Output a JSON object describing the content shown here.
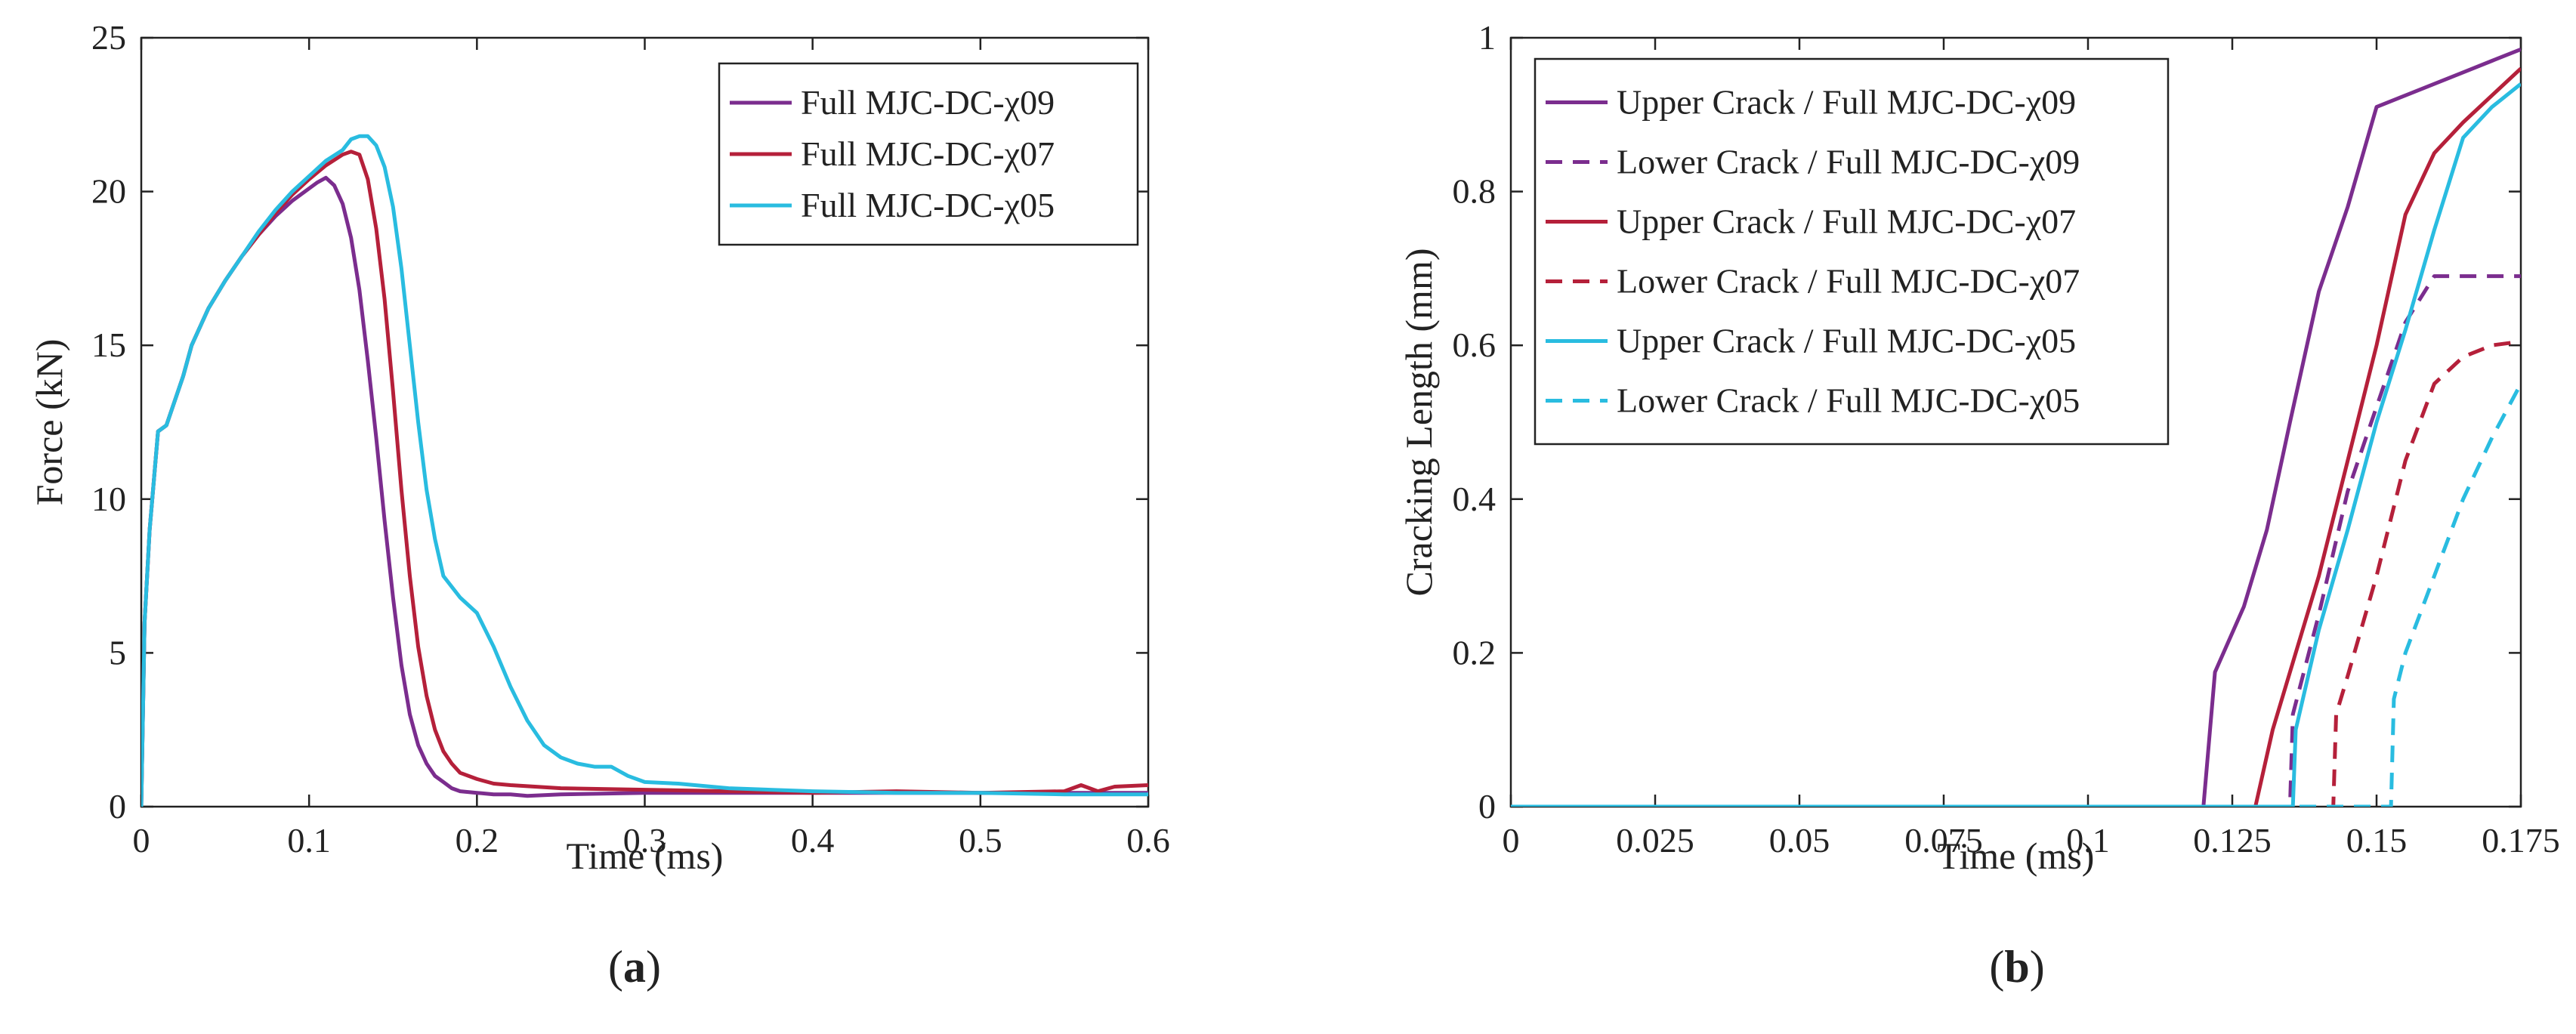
{
  "chart_data": [
    {
      "type": "line",
      "panel_label_open": "(",
      "panel_label_letter": "a",
      "panel_label_close": ")",
      "title": "",
      "xlabel": "Time (ms)",
      "ylabel": "Force (kN)",
      "xlim": [
        0,
        0.6
      ],
      "ylim": [
        0,
        25
      ],
      "xticks": [
        0,
        0.1,
        0.2,
        0.3,
        0.4,
        0.5,
        0.6
      ],
      "xtick_labels": [
        "0",
        "0.1",
        "0.2",
        "0.3",
        "0.4",
        "0.5",
        "0.6"
      ],
      "yticks": [
        0,
        5,
        10,
        15,
        20,
        25
      ],
      "ytick_labels": [
        "0",
        "5",
        "10",
        "15",
        "20",
        "25"
      ],
      "grid": false,
      "legend_position": "top-right",
      "series": [
        {
          "name": "Full MJC-DC-χ09",
          "color": "#7B2D8E",
          "dash": "solid",
          "x": [
            0,
            0.002,
            0.005,
            0.01,
            0.015,
            0.02,
            0.025,
            0.03,
            0.04,
            0.05,
            0.06,
            0.07,
            0.08,
            0.09,
            0.1,
            0.105,
            0.11,
            0.115,
            0.12,
            0.125,
            0.13,
            0.135,
            0.14,
            0.145,
            0.15,
            0.155,
            0.16,
            0.165,
            0.17,
            0.175,
            0.18,
            0.185,
            0.19,
            0.2,
            0.21,
            0.22,
            0.23,
            0.25,
            0.3,
            0.35,
            0.4,
            0.45,
            0.5,
            0.55,
            0.6
          ],
          "y": [
            0,
            6,
            9,
            12.2,
            12.4,
            13.2,
            14,
            15,
            16.2,
            17.1,
            17.9,
            18.6,
            19.2,
            19.7,
            20.1,
            20.3,
            20.45,
            20.2,
            19.6,
            18.5,
            16.8,
            14.5,
            12,
            9.3,
            6.8,
            4.6,
            3,
            2,
            1.4,
            1,
            0.8,
            0.6,
            0.5,
            0.45,
            0.4,
            0.4,
            0.35,
            0.4,
            0.45,
            0.45,
            0.45,
            0.45,
            0.45,
            0.45,
            0.45
          ]
        },
        {
          "name": "Full MJC-DC-χ07",
          "color": "#B5203A",
          "dash": "solid",
          "x": [
            0,
            0.002,
            0.005,
            0.01,
            0.015,
            0.02,
            0.025,
            0.03,
            0.04,
            0.05,
            0.06,
            0.07,
            0.08,
            0.09,
            0.1,
            0.11,
            0.12,
            0.125,
            0.13,
            0.135,
            0.14,
            0.145,
            0.15,
            0.155,
            0.16,
            0.165,
            0.17,
            0.175,
            0.18,
            0.185,
            0.19,
            0.2,
            0.21,
            0.22,
            0.25,
            0.3,
            0.35,
            0.4,
            0.45,
            0.5,
            0.55,
            0.56,
            0.57,
            0.58,
            0.6
          ],
          "y": [
            0,
            6,
            9,
            12.2,
            12.4,
            13.2,
            14,
            15,
            16.2,
            17.1,
            17.9,
            18.6,
            19.3,
            19.9,
            20.4,
            20.85,
            21.2,
            21.3,
            21.2,
            20.4,
            18.8,
            16.5,
            13.5,
            10.3,
            7.5,
            5.2,
            3.6,
            2.5,
            1.8,
            1.4,
            1.1,
            0.9,
            0.75,
            0.7,
            0.6,
            0.55,
            0.5,
            0.45,
            0.5,
            0.45,
            0.5,
            0.7,
            0.5,
            0.65,
            0.7
          ]
        },
        {
          "name": "Full MJC-DC-χ05",
          "color": "#29BCE0",
          "dash": "solid",
          "x": [
            0,
            0.002,
            0.005,
            0.01,
            0.015,
            0.02,
            0.025,
            0.03,
            0.04,
            0.05,
            0.06,
            0.07,
            0.08,
            0.09,
            0.1,
            0.11,
            0.12,
            0.125,
            0.13,
            0.135,
            0.14,
            0.145,
            0.15,
            0.155,
            0.16,
            0.165,
            0.17,
            0.175,
            0.18,
            0.19,
            0.2,
            0.21,
            0.22,
            0.23,
            0.24,
            0.25,
            0.26,
            0.27,
            0.28,
            0.29,
            0.3,
            0.32,
            0.35,
            0.4,
            0.45,
            0.5,
            0.55,
            0.6
          ],
          "y": [
            0,
            6,
            9,
            12.2,
            12.4,
            13.2,
            14,
            15,
            16.2,
            17.1,
            17.9,
            18.7,
            19.4,
            20,
            20.5,
            21,
            21.35,
            21.7,
            21.8,
            21.8,
            21.5,
            20.8,
            19.5,
            17.5,
            15,
            12.5,
            10.3,
            8.7,
            7.5,
            6.8,
            6.3,
            5.2,
            3.9,
            2.8,
            2,
            1.6,
            1.4,
            1.3,
            1.3,
            1,
            0.8,
            0.75,
            0.6,
            0.5,
            0.45,
            0.45,
            0.4,
            0.4
          ]
        }
      ]
    },
    {
      "type": "line",
      "panel_label_open": "(",
      "panel_label_letter": "b",
      "panel_label_close": ")",
      "title": "",
      "xlabel": "Time (ms)",
      "ylabel": "Cracking Length (mm)",
      "xlim": [
        0,
        0.175
      ],
      "ylim": [
        0,
        1
      ],
      "xticks": [
        0,
        0.025,
        0.05,
        0.075,
        0.1,
        0.125,
        0.15,
        0.175
      ],
      "xtick_labels": [
        "0",
        "0.025",
        "0.05",
        "0.075",
        "0.1",
        "0.125",
        "0.15",
        "0.175"
      ],
      "yticks": [
        0,
        0.2,
        0.4,
        0.6,
        0.8,
        1
      ],
      "ytick_labels": [
        "0",
        "0.2",
        "0.4",
        "0.6",
        "0.8",
        "1"
      ],
      "grid": false,
      "legend_position": "top-left",
      "series": [
        {
          "name": "Upper Crack / Full MJC-DC-χ09",
          "color": "#7B2D8E",
          "dash": "solid",
          "x": [
            0,
            0.12,
            0.122,
            0.127,
            0.131,
            0.135,
            0.14,
            0.145,
            0.15,
            0.155,
            0.16,
            0.165,
            0.17,
            0.175
          ],
          "y": [
            0,
            0,
            0.175,
            0.26,
            0.36,
            0.5,
            0.67,
            0.78,
            0.91,
            0.925,
            0.94,
            0.955,
            0.97,
            0.985
          ]
        },
        {
          "name": "Lower Crack / Full MJC-DC-χ09",
          "color": "#7B2D8E",
          "dash": "dashed",
          "x": [
            0,
            0.135,
            0.1355,
            0.14,
            0.145,
            0.15,
            0.155,
            0.16,
            0.165,
            0.17,
            0.175
          ],
          "y": [
            0,
            0,
            0.12,
            0.25,
            0.41,
            0.52,
            0.63,
            0.69,
            0.69,
            0.69,
            0.69
          ]
        },
        {
          "name": "Upper Crack / Full MJC-DC-χ07",
          "color": "#B5203A",
          "dash": "solid",
          "x": [
            0,
            0.129,
            0.132,
            0.136,
            0.14,
            0.145,
            0.15,
            0.155,
            0.16,
            0.165,
            0.17,
            0.175
          ],
          "y": [
            0,
            0,
            0.1,
            0.2,
            0.3,
            0.45,
            0.6,
            0.77,
            0.85,
            0.89,
            0.925,
            0.96
          ]
        },
        {
          "name": "Lower Crack / Full MJC-DC-χ07",
          "color": "#B5203A",
          "dash": "dashed",
          "x": [
            0,
            0.1425,
            0.143,
            0.145,
            0.15,
            0.155,
            0.16,
            0.165,
            0.17,
            0.175
          ],
          "y": [
            0,
            0,
            0.12,
            0.17,
            0.3,
            0.45,
            0.55,
            0.585,
            0.6,
            0.605
          ]
        },
        {
          "name": "Upper Crack / Full MJC-DC-χ05",
          "color": "#29BCE0",
          "dash": "solid",
          "x": [
            0,
            0.1355,
            0.136,
            0.14,
            0.145,
            0.15,
            0.155,
            0.16,
            0.165,
            0.17,
            0.175
          ],
          "y": [
            0,
            0,
            0.1,
            0.23,
            0.36,
            0.5,
            0.62,
            0.75,
            0.87,
            0.91,
            0.94
          ]
        },
        {
          "name": "Lower Crack / Full MJC-DC-χ05",
          "color": "#29BCE0",
          "dash": "dashed",
          "x": [
            0,
            0.1525,
            0.153,
            0.155,
            0.16,
            0.165,
            0.17,
            0.175
          ],
          "y": [
            0,
            0,
            0.14,
            0.2,
            0.3,
            0.4,
            0.48,
            0.55
          ]
        }
      ]
    }
  ]
}
